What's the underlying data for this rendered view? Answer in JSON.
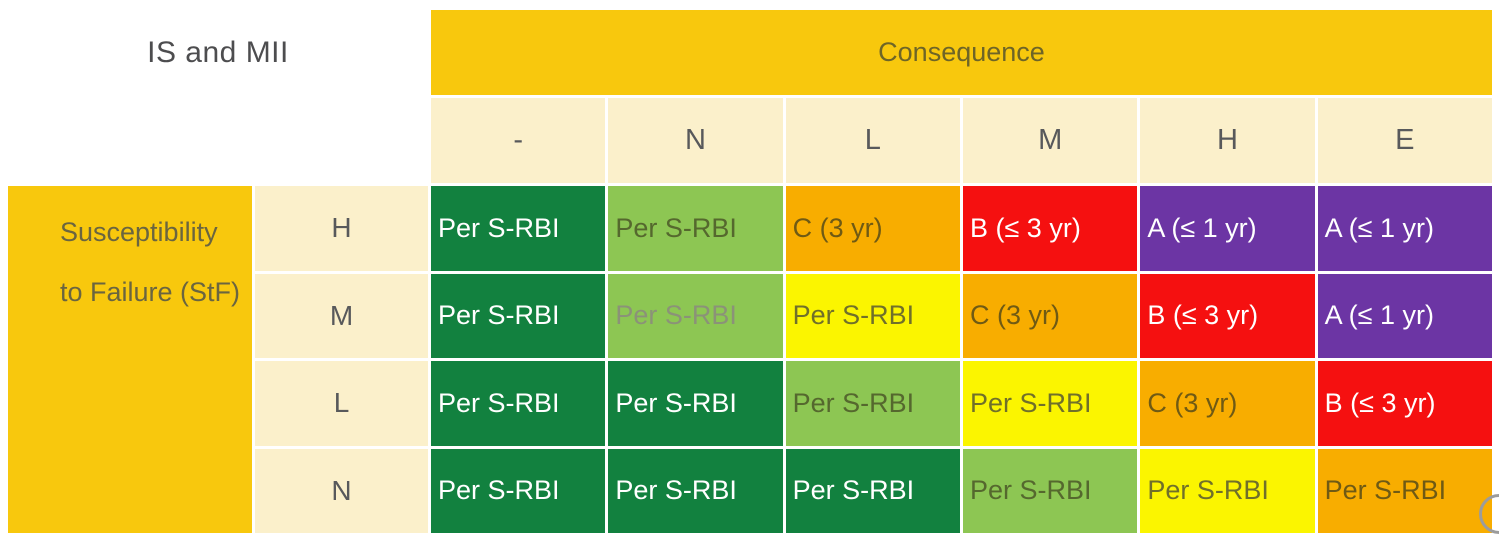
{
  "palette": {
    "gold": "#F8C80D",
    "cream": "#FBF0CB",
    "darkGreen": "#12813F",
    "lightGreen": "#8DC653",
    "yellow": "#FBF500",
    "orange": "#F8AD00",
    "red": "#F51010",
    "purple": "#6C35A4",
    "white": "#FFFFFF",
    "textCorner": "#4D4D4F",
    "textGray": "#58595B",
    "textOliveGold": "#6E6527",
    "textSusceptibility": "#6A6540",
    "textOliveGreen": "#55682E",
    "textOliveMuted": "#8B9278",
    "textOliveYellow": "#70702A",
    "textOliveOrange": "#6F5A14"
  },
  "chart_data": {
    "type": "table",
    "title": "Inspection interval risk matrix: Susceptibility to Failure (StF) vs Consequence for IS and MII",
    "corner_label": "IS and MII",
    "column_group": "Consequence",
    "row_group_line1": "Susceptibility",
    "row_group_line2": "to Failure (StF)",
    "columns": [
      "-",
      "N",
      "L",
      "M",
      "H",
      "E"
    ],
    "rows": [
      {
        "label": "H",
        "cells": [
          {
            "text": "Per S-RBI",
            "bg": "darkGreen",
            "fg": "white"
          },
          {
            "text": "Per S-RBI",
            "bg": "lightGreen",
            "fg": "textOliveGreen"
          },
          {
            "text": "C (3 yr)",
            "bg": "orange",
            "fg": "textOliveOrange"
          },
          {
            "text": "B (≤ 3 yr)",
            "bg": "red",
            "fg": "white"
          },
          {
            "text": "A (≤ 1 yr)",
            "bg": "purple",
            "fg": "white"
          },
          {
            "text": "A (≤ 1 yr)",
            "bg": "purple",
            "fg": "white"
          }
        ]
      },
      {
        "label": "M",
        "cells": [
          {
            "text": "Per S-RBI",
            "bg": "darkGreen",
            "fg": "white"
          },
          {
            "text": "Per S-RBI",
            "bg": "lightGreen",
            "fg": "textOliveMuted"
          },
          {
            "text": "Per S-RBI",
            "bg": "yellow",
            "fg": "textOliveYellow"
          },
          {
            "text": "C (3 yr)",
            "bg": "orange",
            "fg": "textOliveOrange"
          },
          {
            "text": "B (≤ 3 yr)",
            "bg": "red",
            "fg": "white"
          },
          {
            "text": "A (≤ 1 yr)",
            "bg": "purple",
            "fg": "white"
          }
        ]
      },
      {
        "label": "L",
        "cells": [
          {
            "text": "Per S-RBI",
            "bg": "darkGreen",
            "fg": "white"
          },
          {
            "text": "Per S-RBI",
            "bg": "darkGreen",
            "fg": "white"
          },
          {
            "text": "Per S-RBI",
            "bg": "lightGreen",
            "fg": "textOliveGreen"
          },
          {
            "text": "Per S-RBI",
            "bg": "yellow",
            "fg": "textOliveYellow"
          },
          {
            "text": "C (3 yr)",
            "bg": "orange",
            "fg": "textOliveOrange"
          },
          {
            "text": "B (≤ 3 yr)",
            "bg": "red",
            "fg": "white"
          }
        ]
      },
      {
        "label": "N",
        "cells": [
          {
            "text": "Per S-RBI",
            "bg": "darkGreen",
            "fg": "white"
          },
          {
            "text": "Per S-RBI",
            "bg": "darkGreen",
            "fg": "white"
          },
          {
            "text": "Per S-RBI",
            "bg": "darkGreen",
            "fg": "white"
          },
          {
            "text": "Per S-RBI",
            "bg": "lightGreen",
            "fg": "textOliveGreen"
          },
          {
            "text": "Per S-RBI",
            "bg": "yellow",
            "fg": "textOliveYellow"
          },
          {
            "text": "Per S-RBI",
            "bg": "orange",
            "fg": "textOliveOrange"
          }
        ]
      }
    ]
  }
}
